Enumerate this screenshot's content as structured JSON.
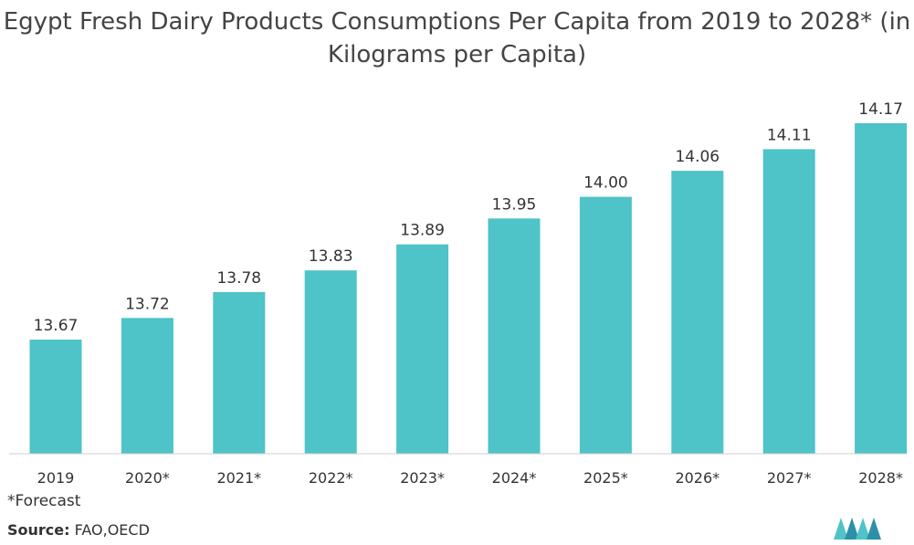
{
  "title_line1": "Egypt Fresh Dairy Products Consumptions Per Capita from 2019 to 2028* (in",
  "title_line2": "Kilograms per Capita)",
  "footnote": "*Forecast",
  "source_label": "Source:",
  "source_value": "FAO,OECD",
  "colors": {
    "bar": "#4ec3c8",
    "axis": "#cccccc",
    "logo": "#4ec3c8"
  },
  "chart_data": {
    "type": "bar",
    "categories": [
      "2019",
      "2020*",
      "2021*",
      "2022*",
      "2023*",
      "2024*",
      "2025*",
      "2026*",
      "2027*",
      "2028*"
    ],
    "series": [
      {
        "values": [
          13.67,
          13.72,
          13.78,
          13.83,
          13.89,
          13.95,
          14.0,
          14.06,
          14.11,
          14.17
        ],
        "labels": [
          "13.67",
          "13.72",
          "13.78",
          "13.83",
          "13.89",
          "13.95",
          "14.00",
          "14.06",
          "14.11",
          "14.17"
        ]
      }
    ],
    "title": "Egypt Fresh Dairy Products Consumptions Per Capita from 2019 to 2028* (in Kilograms per Capita)",
    "xlabel": "",
    "ylabel": "",
    "grid": false,
    "legend": "none"
  }
}
